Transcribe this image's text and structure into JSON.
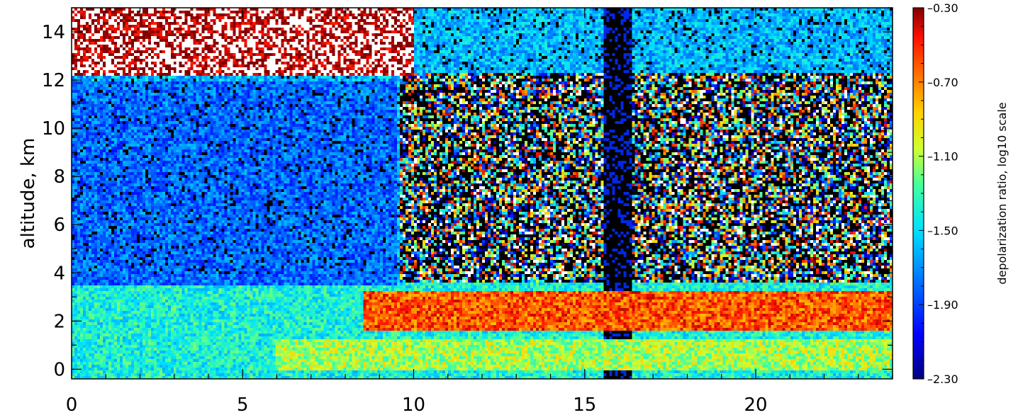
{
  "chart_data": {
    "type": "heatmap",
    "title": "",
    "xlabel": "",
    "ylabel": "altitude,  km",
    "xlim": [
      0,
      24
    ],
    "ylim": [
      -0.4,
      15
    ],
    "x_ticks": [
      0,
      5,
      10,
      15,
      20
    ],
    "x_tick_labels": [
      "0",
      "5",
      "10",
      "15",
      "20"
    ],
    "y_ticks": [
      0,
      2,
      4,
      6,
      8,
      10,
      12,
      14
    ],
    "y_tick_labels": [
      "0",
      "2",
      "4",
      "6",
      "8",
      "10",
      "12",
      "14"
    ],
    "colorbar": {
      "label": "depolarization  ratio,  log10  scale",
      "range": [
        -2.3,
        -0.3
      ],
      "ticks": [
        -0.3,
        -0.7,
        -1.1,
        -1.5,
        -1.9,
        -2.3
      ],
      "tick_labels": [
        "–0.30",
        "–0.70",
        "–1.10",
        "–1.50",
        "–1.90",
        "–2.30"
      ],
      "colormap": "rainbow (dark blue → blue → cyan → green → yellow → orange → red → dark red)"
    },
    "features": [
      {
        "desc": "high depolarization cirrus layer",
        "x_range": [
          0,
          10
        ],
        "altitude_range": [
          12.2,
          15
        ],
        "value": -0.35
      },
      {
        "desc": "low depolarization free troposphere",
        "x_range": [
          0,
          9.5
        ],
        "altitude_range": [
          3.5,
          12
        ],
        "value": -1.8
      },
      {
        "desc": "depolarizing aerosol layer",
        "x_range": [
          8.5,
          24
        ],
        "altitude_range": [
          1.6,
          3.2
        ],
        "value": -0.6
      },
      {
        "desc": "near-surface layer",
        "x_range": [
          6,
          24
        ],
        "altitude_range": [
          0,
          1.2
        ],
        "value": -1.1
      },
      {
        "desc": "no-data gap",
        "x_range": [
          15.6,
          16.4
        ],
        "altitude_range": [
          -0.4,
          15
        ],
        "value": null
      }
    ]
  }
}
